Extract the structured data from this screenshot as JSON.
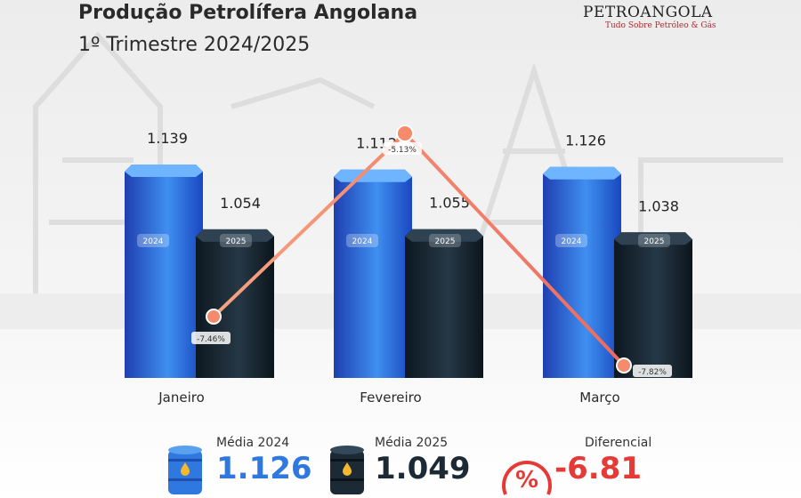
{
  "header": {
    "title": "Produção Petrolífera Angolana",
    "subtitle": "1º Trimestre 2024/2025"
  },
  "logo": {
    "name": "PETROANGOLA",
    "tagline": "Tudo Sobre Petróleo & Gás"
  },
  "colors": {
    "bar_2024": "#2f6fd6",
    "bar_2025": "#14222e",
    "line": "#f08a6e",
    "accent_red": "#e53a36",
    "text": "#2a2a2a"
  },
  "chart_data": {
    "type": "bar",
    "categories": [
      "Janeiro",
      "Fevereiro",
      "Março"
    ],
    "series": [
      {
        "name": "2024",
        "values": [
          1.139,
          1.112,
          1.126
        ],
        "labels": [
          "1.139",
          "1.112",
          "1.126"
        ]
      },
      {
        "name": "2025",
        "values": [
          1.054,
          1.055,
          1.038
        ],
        "labels": [
          "1.054",
          "1.055",
          "1.038"
        ]
      }
    ],
    "change_pct": [
      -7.46,
      -5.13,
      -7.82
    ],
    "change_labels": [
      "-7.46%",
      "-5.13%",
      "-7.82%"
    ]
  },
  "summary": [
    {
      "label": "Média 2024",
      "value": "1.126",
      "icon": "barrel-blue-icon"
    },
    {
      "label": "Média 2025",
      "value": "1.049",
      "icon": "barrel-dark-icon"
    },
    {
      "label": "Diferencial",
      "value": "-6.81",
      "icon": "percent-icon"
    }
  ]
}
